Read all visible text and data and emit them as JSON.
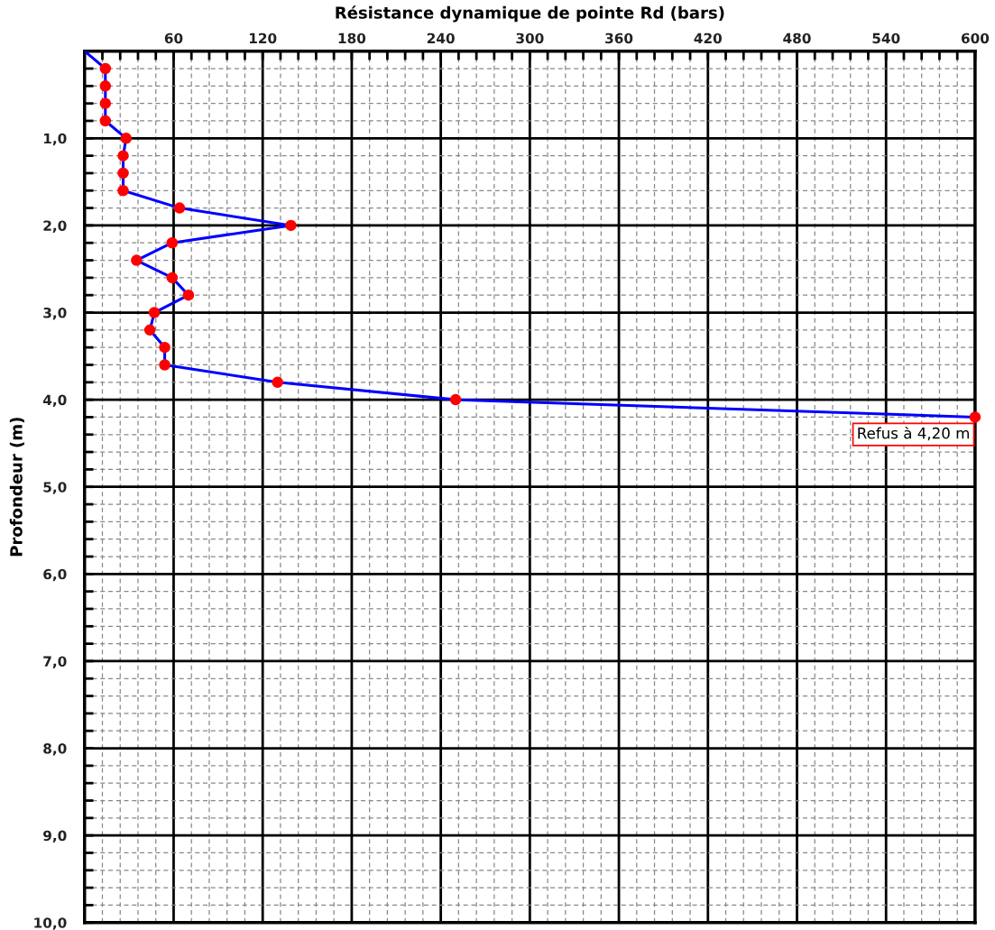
{
  "chart_data": {
    "type": "line",
    "orientation": "horizontal",
    "title": "Résistance dynamique de pointe Rd (bars)",
    "ylabel": "Profondeur (m)",
    "x": [
      0,
      0.2,
      0.4,
      0.6,
      0.8,
      1.0,
      1.2,
      1.4,
      1.6,
      1.8,
      2.0,
      2.2,
      2.4,
      2.6,
      2.8,
      3.0,
      3.2,
      3.4,
      3.6,
      3.8,
      4.0,
      4.2
    ],
    "series": [
      {
        "color": "#0000ff",
        "colors": [
          null,
          "#ff0000",
          "#ff0000",
          "#ff0000",
          "#ff0000",
          "#ff0000",
          "#ff0000",
          "#ff0000",
          "#ff0000",
          "#ff0000",
          "#ff0000",
          "#ff0000",
          "#ff0000",
          "#ff0000",
          "#ff0000",
          "#ff0000",
          "#ff0000",
          "#ff0000",
          "#ff0000",
          "#ff0000",
          "#ff0000",
          "#ff0000"
        ],
        "values": [
          0,
          14,
          14,
          14,
          14,
          28,
          26,
          26,
          26,
          64,
          139,
          59,
          35,
          59,
          70,
          47,
          44,
          54,
          54,
          130,
          250,
          600
        ]
      }
    ],
    "marker": "circle",
    "line_style": "solid",
    "grid": true,
    "xlim": [
      0,
      600
    ],
    "xticks": [
      {
        "value": 12,
        "label": null
      },
      {
        "value": 24,
        "label": null
      },
      {
        "value": 36,
        "label": null
      },
      {
        "value": 48,
        "label": null
      },
      60,
      {
        "value": 72,
        "label": null
      },
      {
        "value": 84,
        "label": null
      },
      {
        "value": 96,
        "label": null
      },
      {
        "value": 108,
        "label": null
      },
      120,
      {
        "value": 132,
        "label": null
      },
      {
        "value": 144,
        "label": null
      },
      {
        "value": 156,
        "label": null
      },
      {
        "value": 168,
        "label": null
      },
      180,
      {
        "value": 192,
        "label": null
      },
      {
        "value": 204,
        "label": null
      },
      {
        "value": 216,
        "label": null
      },
      {
        "value": 228,
        "label": null
      },
      240,
      {
        "value": 252,
        "label": null
      },
      {
        "value": 264,
        "label": null
      },
      {
        "value": 276,
        "label": null
      },
      {
        "value": 288,
        "label": null
      },
      300,
      {
        "value": 312,
        "label": null
      },
      {
        "value": 324,
        "label": null
      },
      {
        "value": 336,
        "label": null
      },
      {
        "value": 348,
        "label": null
      },
      360,
      {
        "value": 372,
        "label": null
      },
      {
        "value": 384,
        "label": null
      },
      {
        "value": 396,
        "label": null
      },
      {
        "value": 408,
        "label": null
      },
      420,
      {
        "value": 432,
        "label": null
      },
      {
        "value": 444,
        "label": null
      },
      {
        "value": 456,
        "label": null
      },
      {
        "value": 468,
        "label": null
      },
      480,
      {
        "value": 492,
        "label": null
      },
      {
        "value": 504,
        "label": null
      },
      {
        "value": 516,
        "label": null
      },
      {
        "value": 528,
        "label": null
      },
      540,
      {
        "value": 552,
        "label": null
      },
      {
        "value": 564,
        "label": null
      },
      {
        "value": 576,
        "label": null
      },
      {
        "value": 588,
        "label": null
      },
      600
    ],
    "ylim": [
      10,
      0
    ],
    "yticks": [
      {
        "value": 0.2,
        "label": null
      },
      {
        "value": 0.4,
        "label": null
      },
      {
        "value": 0.6,
        "label": null
      },
      {
        "value": 0.8,
        "label": null
      },
      {
        "value": 1,
        "label": "1,0"
      },
      {
        "value": 1.2,
        "label": null
      },
      {
        "value": 1.4,
        "label": null
      },
      {
        "value": 1.6,
        "label": null
      },
      {
        "value": 1.8,
        "label": null
      },
      {
        "value": 2,
        "label": "2,0"
      },
      {
        "value": 2.2,
        "label": null
      },
      {
        "value": 2.4,
        "label": null
      },
      {
        "value": 2.6,
        "label": null
      },
      {
        "value": 2.8,
        "label": null
      },
      {
        "value": 3,
        "label": "3,0"
      },
      {
        "value": 3.2,
        "label": null
      },
      {
        "value": 3.4,
        "label": null
      },
      {
        "value": 3.6,
        "label": null
      },
      {
        "value": 3.8,
        "label": null
      },
      {
        "value": 4,
        "label": "4,0"
      },
      {
        "value": 4.2,
        "label": null
      },
      {
        "value": 4.4,
        "label": null
      },
      {
        "value": 4.6,
        "label": null
      },
      {
        "value": 4.8,
        "label": null
      },
      {
        "value": 5,
        "label": "5,0"
      },
      {
        "value": 5.2,
        "label": null
      },
      {
        "value": 5.4,
        "label": null
      },
      {
        "value": 5.6,
        "label": null
      },
      {
        "value": 5.8,
        "label": null
      },
      {
        "value": 6,
        "label": "6,0"
      },
      {
        "value": 6.2,
        "label": null
      },
      {
        "value": 6.4,
        "label": null
      },
      {
        "value": 6.6,
        "label": null
      },
      {
        "value": 6.8,
        "label": null
      },
      {
        "value": 7,
        "label": "7,0"
      },
      {
        "value": 7.2,
        "label": null
      },
      {
        "value": 7.4,
        "label": null
      },
      {
        "value": 7.6,
        "label": null
      },
      {
        "value": 7.8,
        "label": null
      },
      {
        "value": 8,
        "label": "8,0"
      },
      {
        "value": 8.2,
        "label": null
      },
      {
        "value": 8.4,
        "label": null
      },
      {
        "value": 8.6,
        "label": null
      },
      {
        "value": 8.8,
        "label": null
      },
      {
        "value": 9,
        "label": "9,0"
      },
      {
        "value": 9.2,
        "label": null
      },
      {
        "value": 9.4,
        "label": null
      },
      {
        "value": 9.6,
        "label": null
      },
      {
        "value": 9.8,
        "label": null
      },
      {
        "value": 10,
        "label": "10,0"
      }
    ],
    "annotations": [
      {
        "text": "Refus à 4,20 m",
        "x": 600,
        "y": 4.2
      }
    ]
  }
}
